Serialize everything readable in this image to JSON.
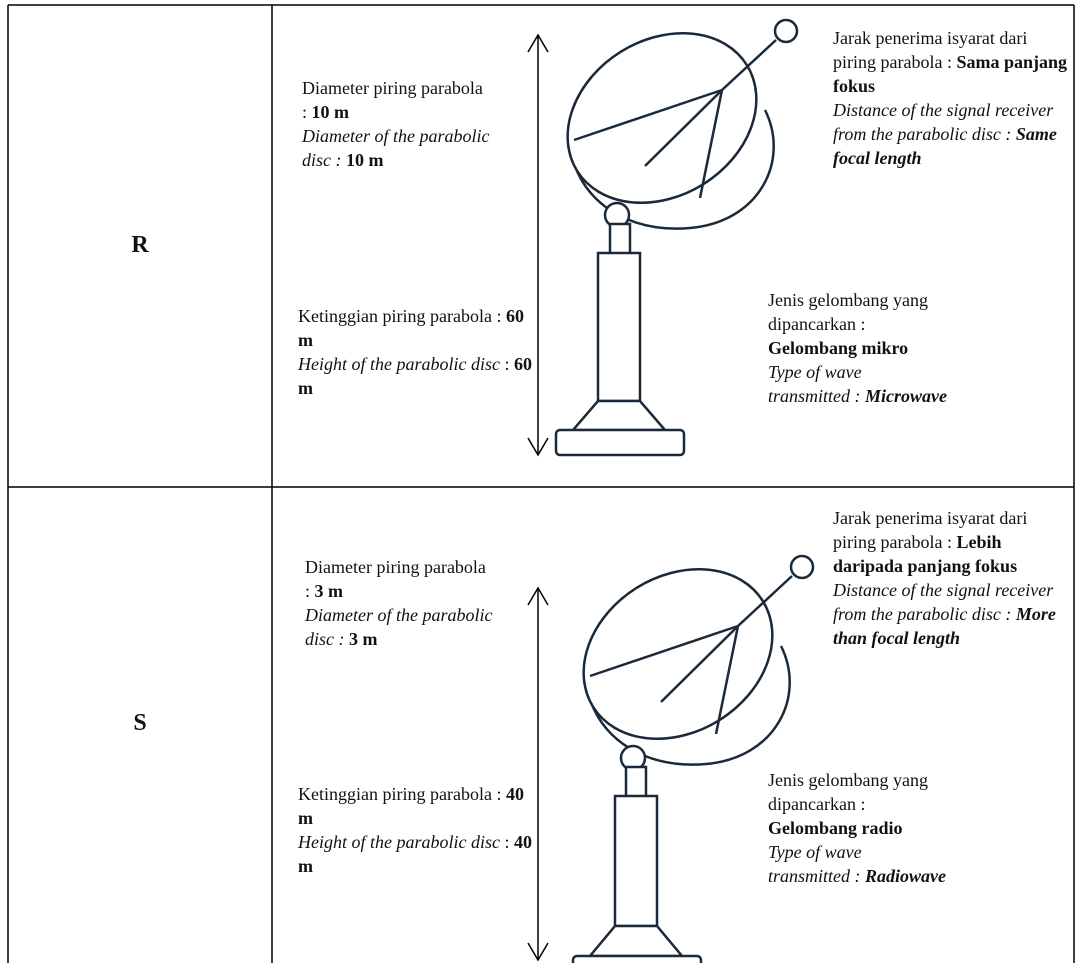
{
  "rows": [
    {
      "label": "R",
      "diameter": {
        "ms_label": "Diameter piring parabola :",
        "ms_value": "10 m",
        "en_label": "Diameter of the parabolic disc :",
        "en_value": "10 m"
      },
      "height": {
        "ms_label": "Ketinggian piring parabola :",
        "ms_value": "60 m",
        "en_label": "Height of the parabolic disc",
        "en_sep": ":",
        "en_value": "60 m"
      },
      "distance": {
        "ms_label": "Jarak penerima isyarat dari piring parabola :",
        "ms_value": "Sama panjang fokus",
        "en_label": "Distance of the signal receiver from the parabolic disc :",
        "en_value": "Same focal length"
      },
      "wave": {
        "ms_label": "Jenis gelombang yang dipancarkan :",
        "ms_value": "Gelombang mikro",
        "en_label": "Type of wave transmitted :",
        "en_value": "Microwave"
      }
    },
    {
      "label": "S",
      "diameter": {
        "ms_label": "Diameter piring parabola :",
        "ms_value": "3 m",
        "en_label": "Diameter of the parabolic disc :",
        "en_value": "3 m"
      },
      "height": {
        "ms_label": "Ketinggian piring parabola :",
        "ms_value": "40 m",
        "en_label": "Height of the parabolic disc",
        "en_sep": ":",
        "en_value": "40 m"
      },
      "distance": {
        "ms_label": "Jarak penerima isyarat dari piring parabola :",
        "ms_value": "Lebih daripada panjang fokus",
        "en_label": "Distance of the signal receiver from the parabolic disc :",
        "en_value": "More than focal length"
      },
      "wave": {
        "ms_label": "Jenis gelombang yang dipancarkan :",
        "ms_value": "Gelombang radio",
        "en_label": "Type of wave transmitted :",
        "en_value": "Radiowave"
      }
    }
  ]
}
